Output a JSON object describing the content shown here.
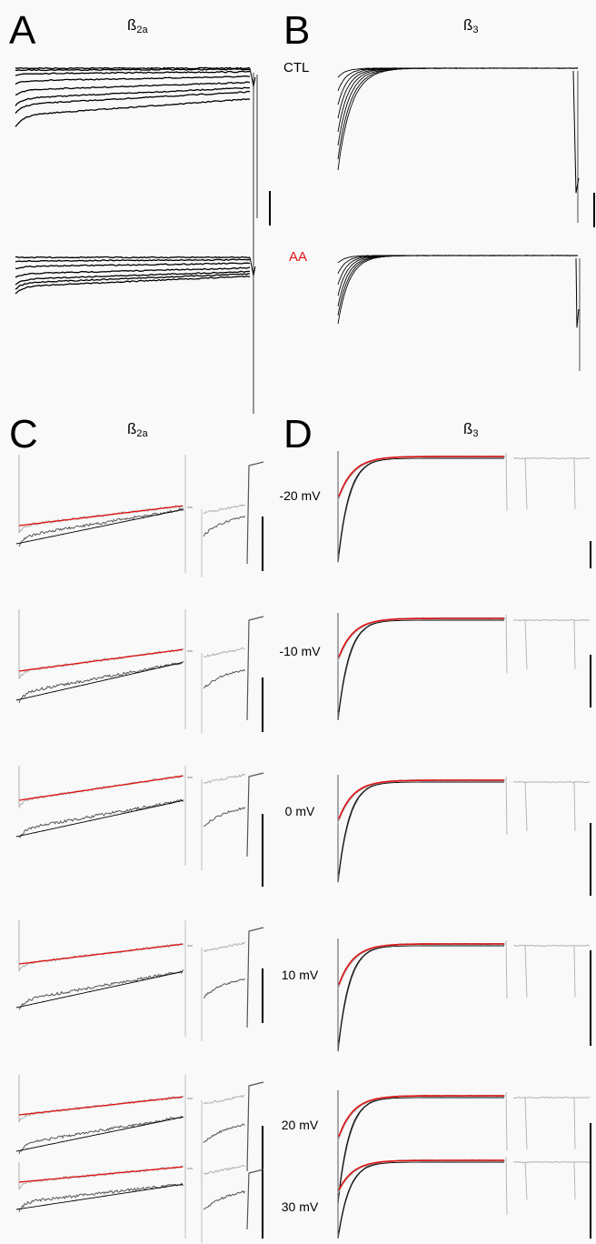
{
  "panels": {
    "a": {
      "letter": "A",
      "title": "ß",
      "subscript": "2a"
    },
    "b": {
      "letter": "B",
      "title": "ß",
      "subscript": "3"
    },
    "c": {
      "letter": "C",
      "title": "ß",
      "subscript": "2a"
    },
    "d": {
      "letter": "D",
      "title": "ß",
      "subscript": "3"
    }
  },
  "conditions": {
    "control": "CTL",
    "treated": "AA"
  },
  "voltages": [
    "-20 mV",
    "-10 mV",
    "0 mV",
    "10 mV",
    "20 mV",
    "30 mV"
  ],
  "colors": {
    "fit": "#e01010",
    "trace_dark": "#555555",
    "trace_light": "#b0b0b0",
    "trace_black": "#000000",
    "label_red": "#e01010"
  }
}
